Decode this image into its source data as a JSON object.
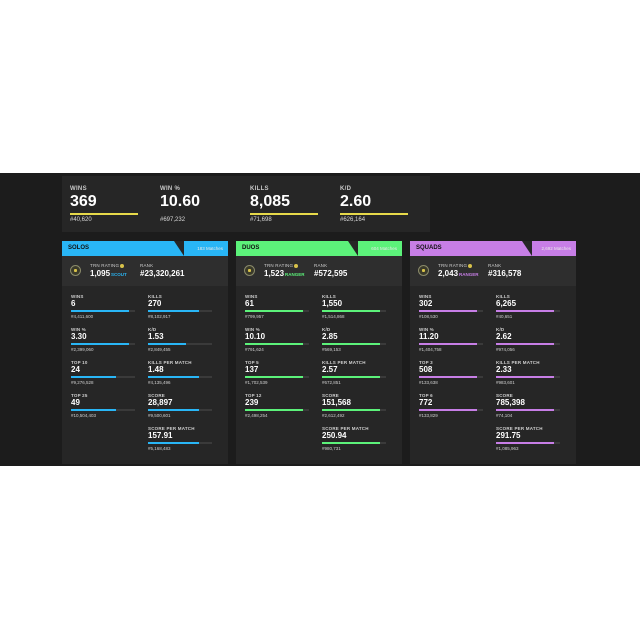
{
  "overview": [
    {
      "label": "WINS",
      "value": "369",
      "rank": "#40,620",
      "fill": 0.85
    },
    {
      "label": "WIN %",
      "value": "10.60",
      "rank": "#697,232",
      "fill": 0.0
    },
    {
      "label": "KILLS",
      "value": "8,085",
      "rank": "#71,698",
      "fill": 0.85
    },
    {
      "label": "K/D",
      "value": "2.60",
      "rank": "#626,164",
      "fill": 0.85
    }
  ],
  "accent_colors": {
    "overview": "#e6d94a",
    "solos": "#29b6f6",
    "duos": "#5cf27a",
    "squads": "#c77ee6",
    "trn_badge": "#d8c24a"
  },
  "icons": [
    "trn-rating-icon",
    "help-icon"
  ],
  "panels": [
    {
      "key": "solos",
      "title": "SOLOS",
      "matches": "183 Matches",
      "color": "#29b6f6",
      "trn": {
        "label": "TRN RATING",
        "value": "1,095",
        "tag": "SCOUT"
      },
      "rank": {
        "label": "RANK",
        "value": "#23,320,261"
      },
      "stats": [
        {
          "label": "WINS",
          "value": "6",
          "rank": "#4,411,600",
          "fill": 0.9
        },
        {
          "label": "KILLS",
          "value": "270",
          "rank": "#8,102,917",
          "fill": 0.8
        },
        {
          "label": "WIN %",
          "value": "3.30",
          "rank": "#2,399,060",
          "fill": 0.9
        },
        {
          "label": "K/D",
          "value": "1.53",
          "rank": "#2,849,455",
          "fill": 0.6
        },
        {
          "label": "TOP 10",
          "value": "24",
          "rank": "#9,276,528",
          "fill": 0.7
        },
        {
          "label": "KILLS PER MATCH",
          "value": "1.48",
          "rank": "#4,135,496",
          "fill": 0.8
        },
        {
          "label": "TOP 25",
          "value": "49",
          "rank": "#10,504,403",
          "fill": 0.7
        },
        {
          "label": "SCORE",
          "value": "28,897",
          "rank": "#9,500,601",
          "fill": 0.8
        },
        {
          "label": "",
          "value": "",
          "rank": "",
          "fill": 0
        },
        {
          "label": "SCORE PER MATCH",
          "value": "157.91",
          "rank": "#5,168,483",
          "fill": 0.8
        }
      ]
    },
    {
      "key": "duos",
      "title": "DUOS",
      "matches": "604 Matches",
      "color": "#5cf27a",
      "trn": {
        "label": "TRN RATING",
        "value": "1,523",
        "tag": "RANGER"
      },
      "rank": {
        "label": "RANK",
        "value": "#572,595"
      },
      "stats": [
        {
          "label": "WINS",
          "value": "61",
          "rank": "#799,957",
          "fill": 0.9
        },
        {
          "label": "KILLS",
          "value": "1,550",
          "rank": "#1,514,868",
          "fill": 0.9
        },
        {
          "label": "WIN %",
          "value": "10.10",
          "rank": "#791,624",
          "fill": 0.9
        },
        {
          "label": "K/D",
          "value": "2.85",
          "rank": "#569,153",
          "fill": 0.9
        },
        {
          "label": "TOP 5",
          "value": "137",
          "rank": "#1,702,539",
          "fill": 0.9
        },
        {
          "label": "KILLS PER MATCH",
          "value": "2.57",
          "rank": "#672,851",
          "fill": 0.9
        },
        {
          "label": "TOP 12",
          "value": "239",
          "rank": "#2,498,254",
          "fill": 0.9
        },
        {
          "label": "SCORE",
          "value": "151,568",
          "rank": "#2,612,492",
          "fill": 0.9
        },
        {
          "label": "",
          "value": "",
          "rank": "",
          "fill": 0
        },
        {
          "label": "SCORE PER MATCH",
          "value": "250.94",
          "rank": "#980,731",
          "fill": 0.9
        }
      ]
    },
    {
      "key": "squads",
      "title": "SQUADS",
      "matches": "2,692 Matches",
      "color": "#c77ee6",
      "trn": {
        "label": "TRN RATING",
        "value": "2,043",
        "tag": "RANGER"
      },
      "rank": {
        "label": "RANK",
        "value": "#316,578"
      },
      "stats": [
        {
          "label": "WINS",
          "value": "302",
          "rank": "#108,530",
          "fill": 0.9
        },
        {
          "label": "KILLS",
          "value": "6,265",
          "rank": "#40,651",
          "fill": 0.9
        },
        {
          "label": "WIN %",
          "value": "11.20",
          "rank": "#1,404,758",
          "fill": 0.9
        },
        {
          "label": "K/D",
          "value": "2.62",
          "rank": "#974,056",
          "fill": 0.9
        },
        {
          "label": "TOP 3",
          "value": "508",
          "rank": "#133,638",
          "fill": 0.9
        },
        {
          "label": "KILLS PER MATCH",
          "value": "2.33",
          "rank": "#983,601",
          "fill": 0.9
        },
        {
          "label": "TOP 6",
          "value": "772",
          "rank": "#133,829",
          "fill": 0.9
        },
        {
          "label": "SCORE",
          "value": "785,398",
          "rank": "#74,104",
          "fill": 0.9
        },
        {
          "label": "",
          "value": "",
          "rank": "",
          "fill": 0
        },
        {
          "label": "SCORE PER MATCH",
          "value": "291.75",
          "rank": "#1,085,963",
          "fill": 0.9
        }
      ]
    }
  ]
}
